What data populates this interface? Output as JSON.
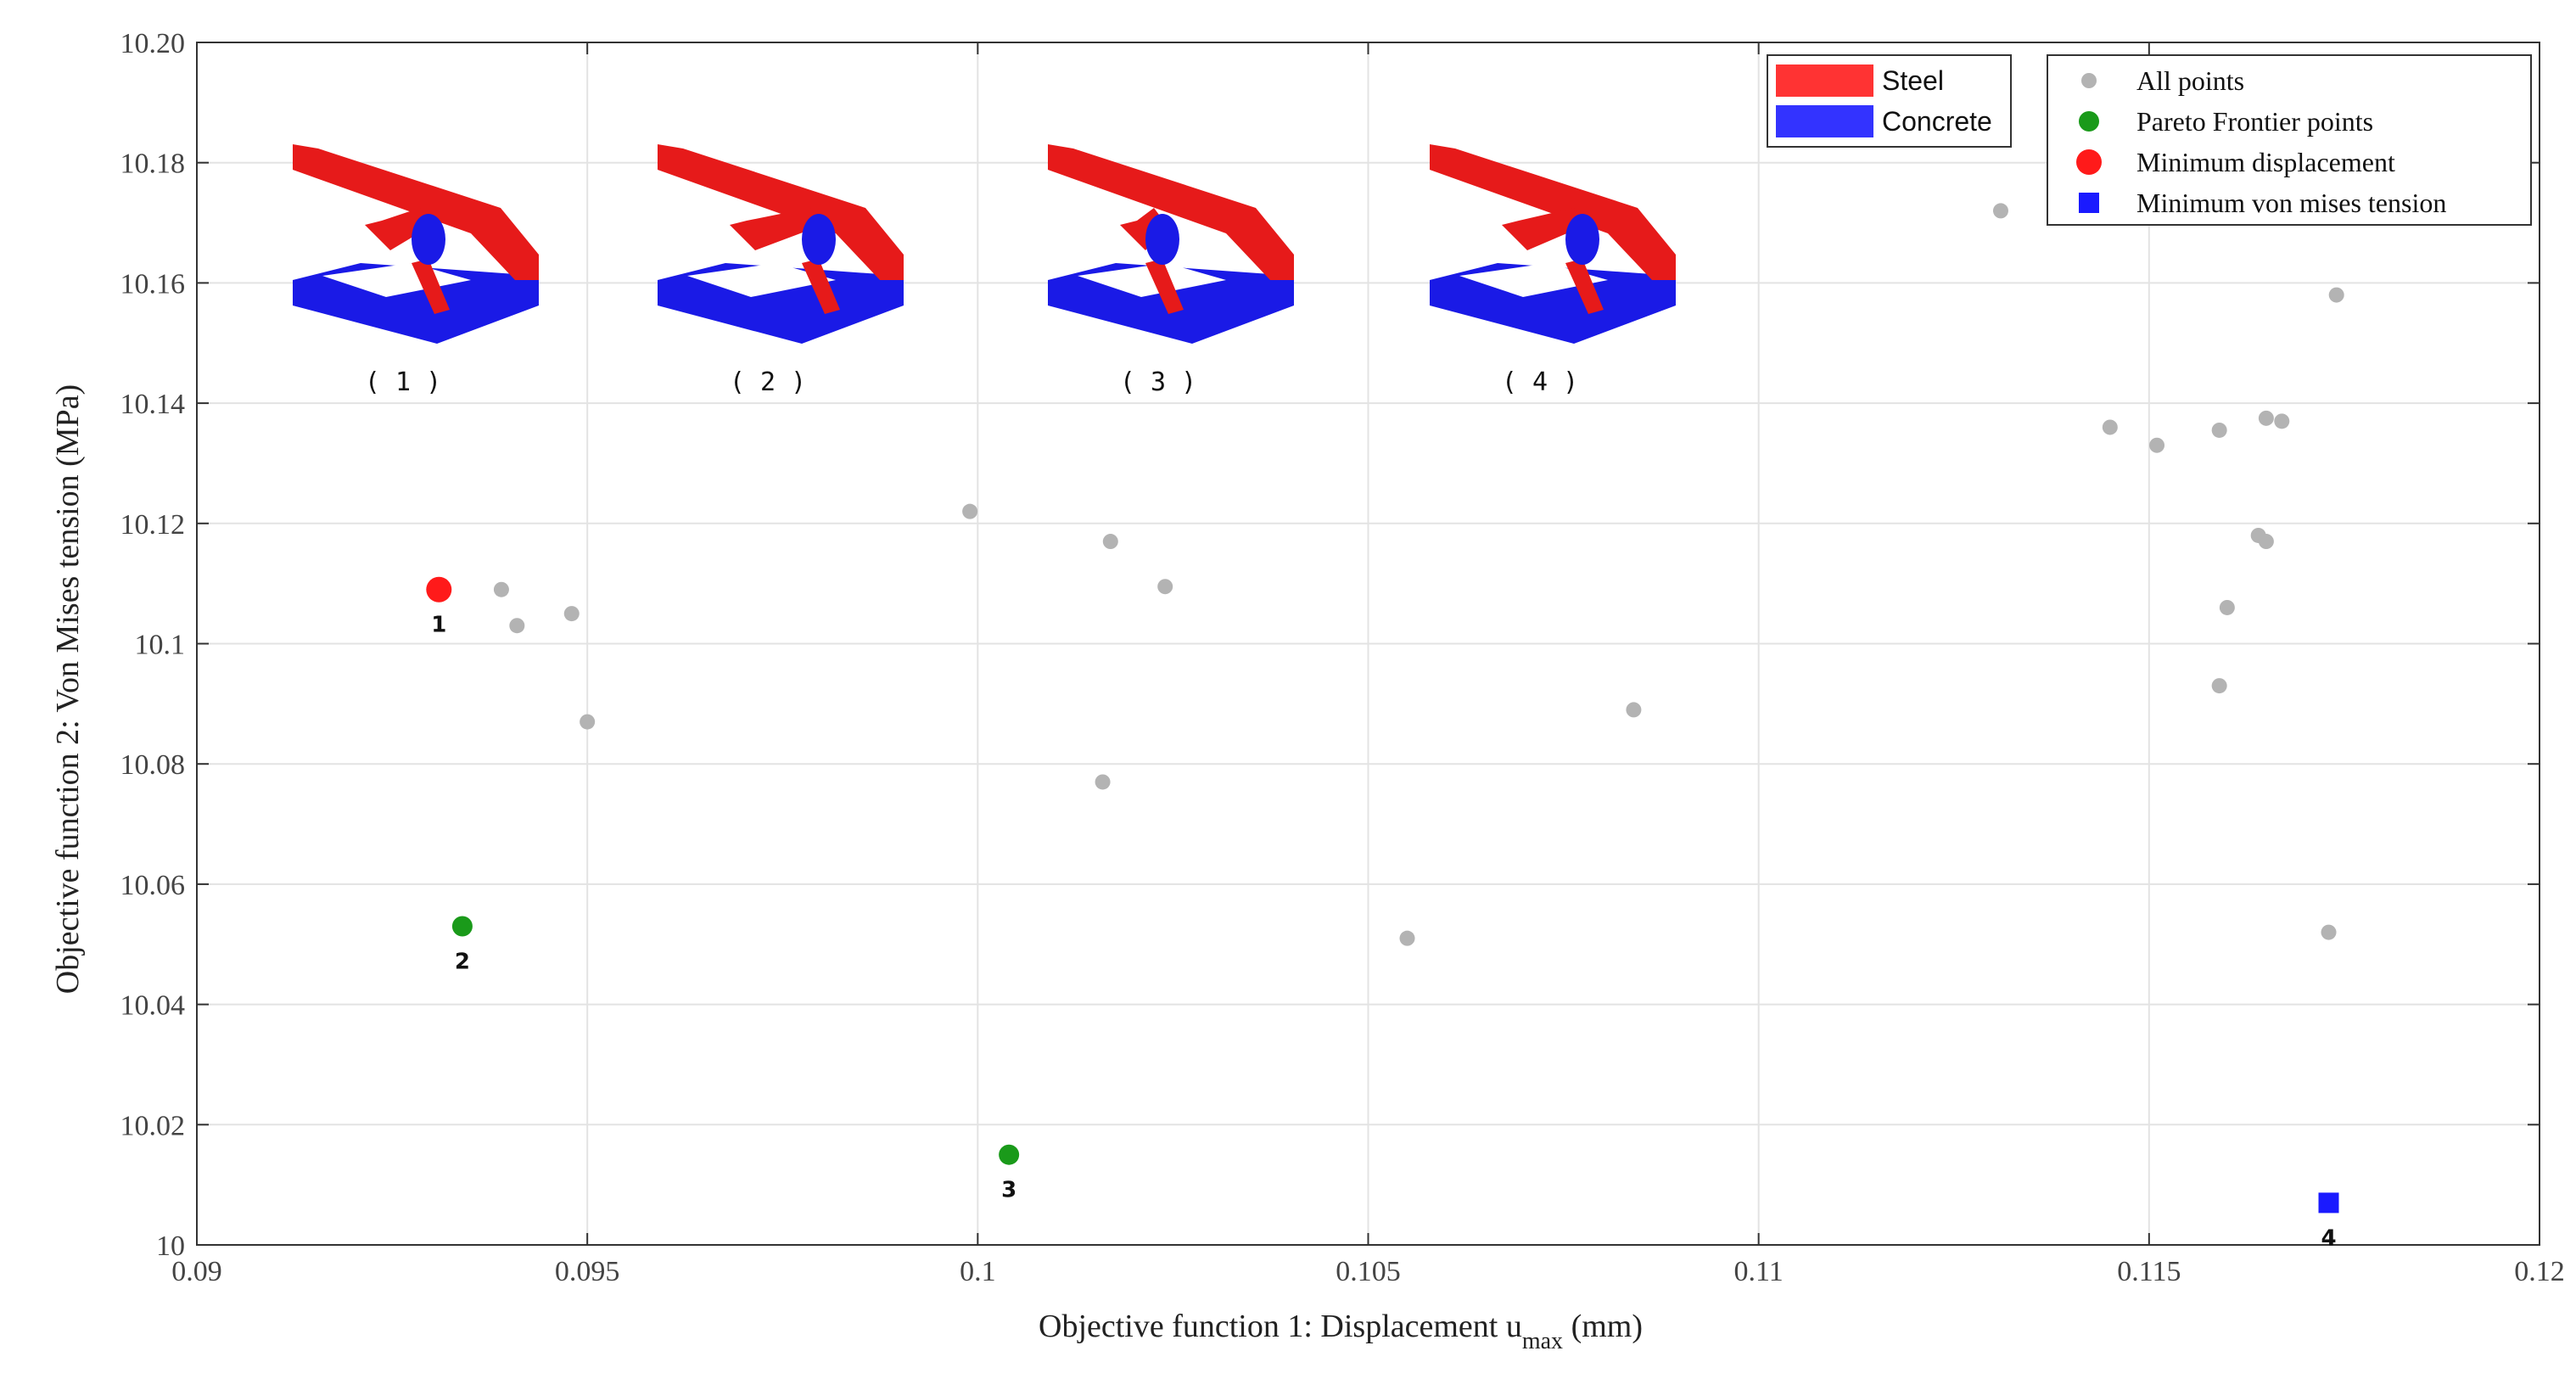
{
  "chart_data": {
    "type": "scatter",
    "xlabel": "Objective function 1: Displacement u",
    "xlabel_sub": "max",
    "xlabel_suffix": " (mm)",
    "ylabel": "Objective function 2: Von Mises tension (MPa)",
    "xlim": [
      0.09,
      0.12
    ],
    "ylim": [
      10.0,
      10.2
    ],
    "x_ticks": [
      0.09,
      0.095,
      0.1,
      0.105,
      0.11,
      0.115,
      0.12
    ],
    "x_tick_labels": [
      "0.09",
      "0.095",
      "0.1",
      "0.105",
      "0.11",
      "0.115",
      "0.12"
    ],
    "y_ticks": [
      10.0,
      10.02,
      10.04,
      10.06,
      10.08,
      10.1,
      10.12,
      10.14,
      10.16,
      10.18,
      10.2
    ],
    "y_tick_labels": [
      "10",
      "10.02",
      "10.04",
      "10.06",
      "10.08",
      "10.1",
      "10.12",
      "10.14",
      "10.16",
      "10.18",
      "10.20"
    ],
    "grid": true,
    "legend_position": "top-right",
    "series": [
      {
        "name": "All points",
        "color": "#b3b3b3",
        "marker": "circle-small",
        "points": [
          [
            0.0939,
            10.109
          ],
          [
            0.0941,
            10.103
          ],
          [
            0.0948,
            10.105
          ],
          [
            0.095,
            10.087
          ],
          [
            0.0999,
            10.122
          ],
          [
            0.1017,
            10.117
          ],
          [
            0.1024,
            10.1095
          ],
          [
            0.1016,
            10.077
          ],
          [
            0.1055,
            10.051
          ],
          [
            0.1084,
            10.089
          ],
          [
            0.1131,
            10.172
          ],
          [
            0.1174,
            10.158
          ],
          [
            0.1145,
            10.136
          ],
          [
            0.1151,
            10.133
          ],
          [
            0.1159,
            10.1355
          ],
          [
            0.1165,
            10.1375
          ],
          [
            0.1167,
            10.137
          ],
          [
            0.1164,
            10.118
          ],
          [
            0.1165,
            10.117
          ],
          [
            0.116,
            10.106
          ],
          [
            0.1159,
            10.093
          ],
          [
            0.1173,
            10.052
          ]
        ]
      },
      {
        "name": "Pareto Frontier points",
        "color": "#1a9a1a",
        "marker": "circle-medium",
        "points": [
          [
            0.0934,
            10.053
          ],
          [
            0.1004,
            10.015
          ]
        ]
      },
      {
        "name": "Minimum displacement",
        "color": "#ff1a1a",
        "marker": "circle-large",
        "points": [
          [
            0.0931,
            10.109
          ]
        ]
      },
      {
        "name": "Minimum von mises tension",
        "color": "#1a1aff",
        "marker": "square",
        "points": [
          [
            0.1173,
            10.007
          ]
        ]
      }
    ],
    "point_labels": [
      {
        "text": "1",
        "x": 0.0931,
        "y": 10.109
      },
      {
        "text": "2",
        "x": 0.0934,
        "y": 10.053
      },
      {
        "text": "3",
        "x": 0.1004,
        "y": 10.015
      },
      {
        "text": "4",
        "x": 0.1173,
        "y": 10.007
      }
    ],
    "material_legend": [
      {
        "name": "Steel",
        "color": "#ff3333"
      },
      {
        "name": "Concrete",
        "color": "#3333ff"
      }
    ],
    "insets": [
      {
        "label": "( 1 )",
        "steel_color": "#e61a1a",
        "concrete_color": "#1a1ae6"
      },
      {
        "label": "( 2 )",
        "steel_color": "#e61a1a",
        "concrete_color": "#1a1ae6"
      },
      {
        "label": "( 3 )",
        "steel_color": "#e61a1a",
        "concrete_color": "#1a1ae6"
      },
      {
        "label": "( 4 )",
        "steel_color": "#e61a1a",
        "concrete_color": "#1a1ae6"
      }
    ]
  }
}
